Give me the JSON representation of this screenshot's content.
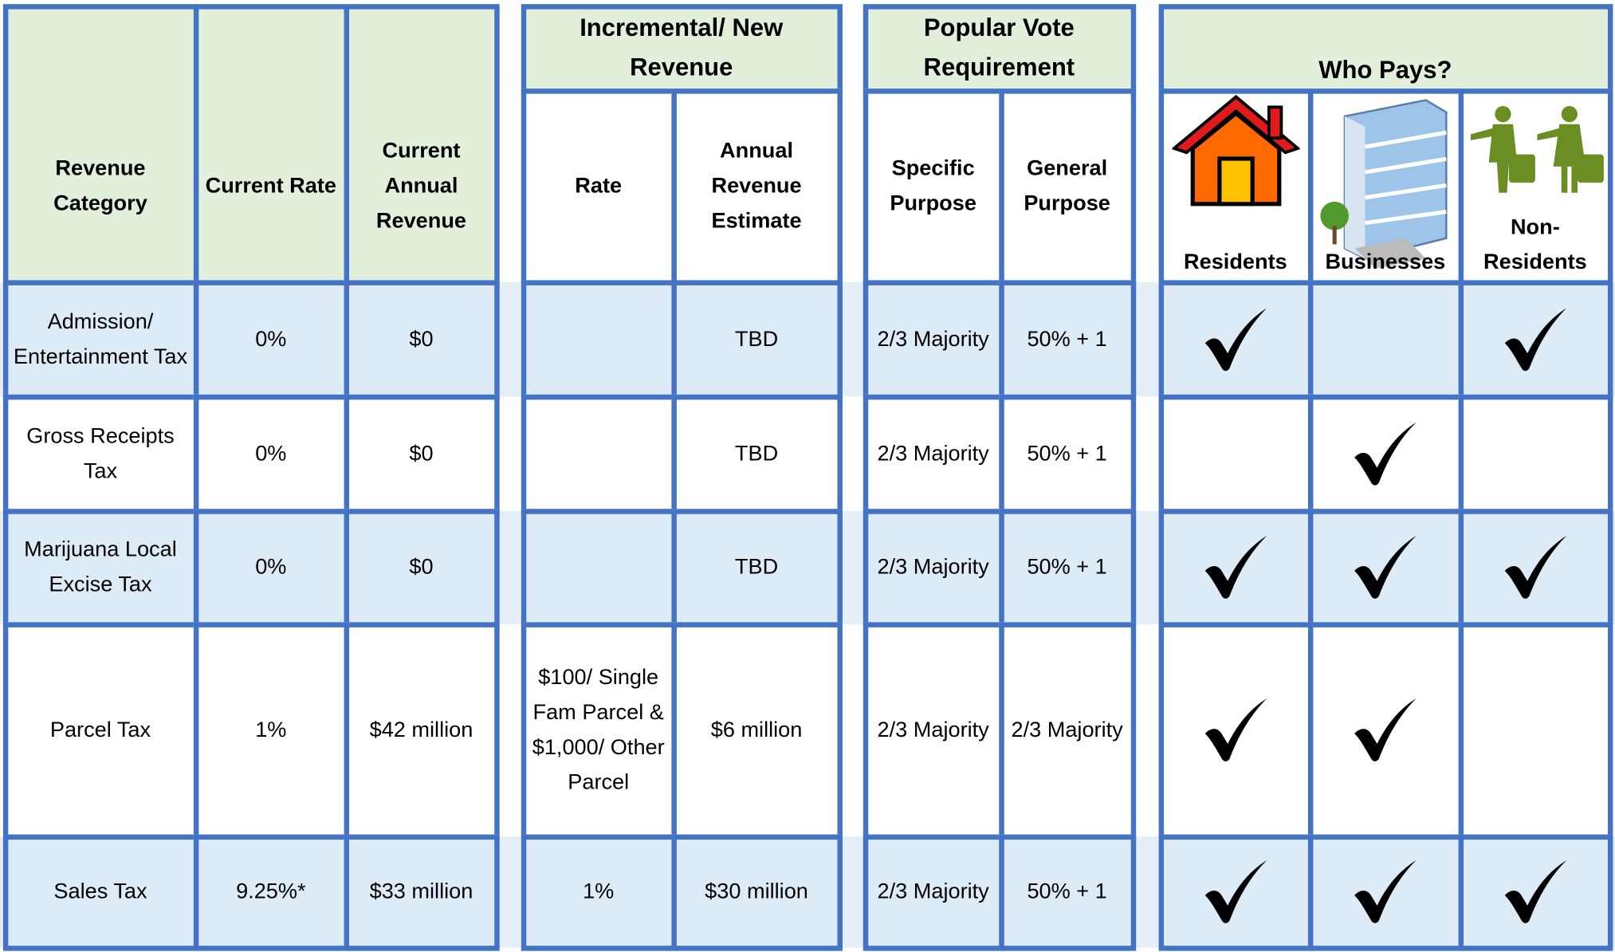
{
  "table": {
    "group_headers": [
      "Incremental/ New Revenue",
      "Popular Vote Requirement",
      "Who Pays?"
    ],
    "columns": [
      "Revenue Category",
      "Current Rate",
      "Current Annual Revenue",
      "Rate",
      "Annual Revenue Estimate",
      "Specific Purpose",
      "General Purpose",
      "Residents",
      "Businesses",
      "Non-Residents"
    ],
    "rows": [
      {
        "cells": [
          "Admission/ Entertainment Tax",
          "0%",
          "$0",
          null,
          "TBD",
          "2/3 Majority",
          "50% + 1"
        ],
        "who_pays": [
          true,
          false,
          true
        ]
      },
      {
        "cells": [
          "Gross Receipts Tax",
          "0%",
          "$0",
          null,
          "TBD",
          "2/3 Majority",
          "50% + 1"
        ],
        "who_pays": [
          false,
          true,
          false
        ]
      },
      {
        "cells": [
          "Marijuana Local Excise Tax",
          "0%",
          "$0",
          null,
          "TBD",
          "2/3 Majority",
          "50% + 1"
        ],
        "who_pays": [
          true,
          true,
          true
        ]
      },
      {
        "cells": [
          "Parcel Tax",
          "1%",
          "$42 million",
          "$100/ Single Fam Parcel & $1,000/ Other Parcel",
          "$6 million",
          "2/3 Majority",
          "2/3 Majority"
        ],
        "who_pays": [
          true,
          true,
          false
        ]
      },
      {
        "cells": [
          "Sales Tax",
          "9.25%*",
          "$33 million",
          "1%",
          "$30 million",
          "2/3 Majority",
          "50% + 1"
        ],
        "who_pays": [
          true,
          true,
          true
        ]
      }
    ]
  }
}
